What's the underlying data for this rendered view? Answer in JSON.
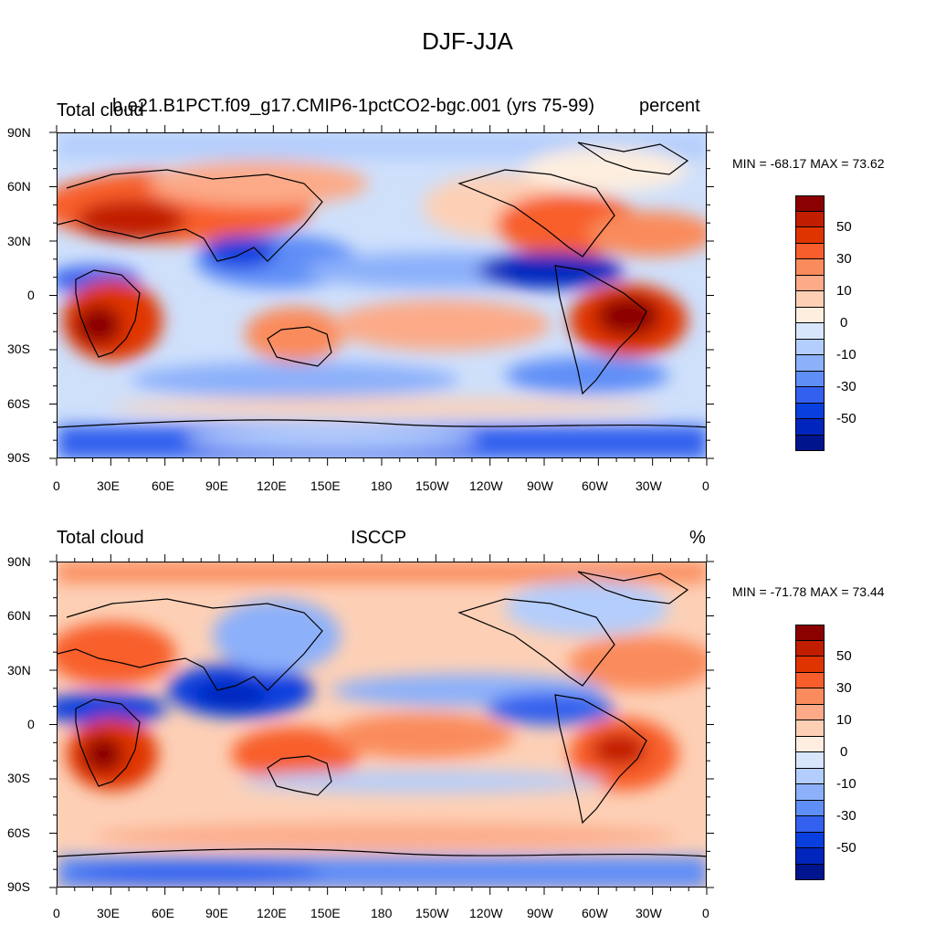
{
  "figure_title": "DJF-JJA",
  "panels": [
    {
      "left_title": "Total cloud",
      "center_title": "b.e21.B1PCT.f09_g17.CMIP6-1pctCO2-bgc.001 (yrs 75-99)",
      "right_title": "percent",
      "stats": "MIN = -68.17 MAX =  73.62"
    },
    {
      "left_title": "Total cloud",
      "center_title": "ISCCP",
      "right_title": "%",
      "stats": "MIN = -71.78 MAX =  73.44"
    }
  ],
  "axes": {
    "lat_labels": [
      "90N",
      "60N",
      "30N",
      "0",
      "30S",
      "60S",
      "90S"
    ],
    "lon_labels": [
      "0",
      "30E",
      "60E",
      "90E",
      "120E",
      "150E",
      "180",
      "150W",
      "120W",
      "90W",
      "60W",
      "30W",
      "0"
    ]
  },
  "colorbar": {
    "labels": [
      "50",
      "30",
      "10",
      "0",
      "-10",
      "-30",
      "-50"
    ],
    "colors": [
      "#8b0000",
      "#c11e00",
      "#e03400",
      "#f85e2c",
      "#fa8b5c",
      "#fcaa88",
      "#fdd0b6",
      "#fdeedf",
      "#d8e6fc",
      "#b3cdfc",
      "#8cb0fa",
      "#5f8ef7",
      "#3360ee",
      "#0a3fdf",
      "#0025bd",
      "#00148e"
    ]
  }
}
